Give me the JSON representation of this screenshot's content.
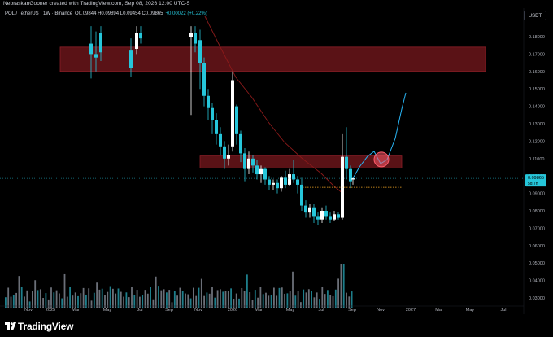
{
  "header": {
    "attribution": "NebraskanGooner created with TradingView.com, Sep 08, 2026 12:00 UTC-5"
  },
  "legend": {
    "symbol": "POL / TetherUS · 1W · Binance",
    "ohlc": "O0.09844 H0.09894 L0.09454 C0.09865",
    "change": "+0.00022 (+0.22%)"
  },
  "toolbar": {
    "currency": "USDT"
  },
  "price_axis": {
    "ticks": [
      "0.18000",
      "0.17000",
      "0.16000",
      "0.15000",
      "0.14000",
      "0.13000",
      "0.12000",
      "0.11000",
      "0.10000",
      "0.09000",
      "0.08000",
      "0.07000",
      "0.06000",
      "0.05000",
      "0.04000",
      "0.03000"
    ],
    "last_price": "0.09865",
    "countdown": "5d 7h"
  },
  "time_axis": {
    "ticks": [
      "Nov",
      "2025",
      "Mar",
      "May",
      "Jul",
      "Sep",
      "Nov",
      "2026",
      "Mar",
      "May",
      "Jul",
      "Sep",
      "Nov",
      "2027",
      "Mar",
      "May",
      "Jul"
    ]
  },
  "zones": [
    {
      "name": "upper-resistance-zone",
      "from": 0.16,
      "to": 0.174
    },
    {
      "name": "mid-resistance-zone",
      "from": 0.1045,
      "to": 0.1115
    }
  ],
  "projection": {
    "target_high": 0.149,
    "circle_level": 0.1095
  },
  "colors": {
    "up": "#ffffff",
    "down": "#26c6da",
    "zone": "#5a1216",
    "zone_border": "#8a1f27",
    "ma": "#8b1a1a",
    "projection": "#29b6f6",
    "circle": "#ff5a6a",
    "dotted": "#f5a623",
    "last_price": "#26c6da"
  },
  "brand": {
    "name": "TradingView"
  }
}
